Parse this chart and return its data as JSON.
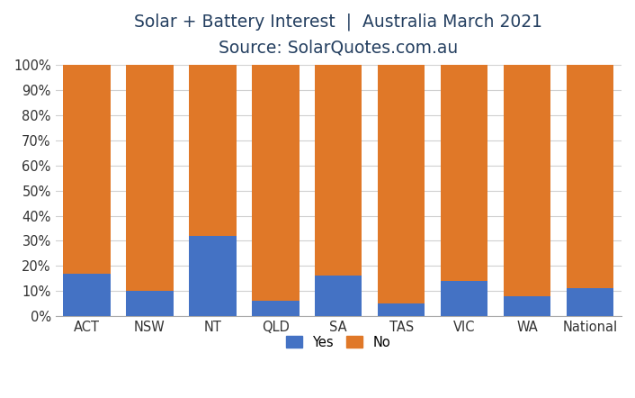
{
  "categories": [
    "ACT",
    "NSW",
    "NT",
    "QLD",
    "SA",
    "TAS",
    "VIC",
    "WA",
    "National"
  ],
  "yes_values": [
    17,
    10,
    32,
    6,
    16,
    5,
    14,
    8,
    11
  ],
  "no_values": [
    83,
    90,
    68,
    94,
    84,
    95,
    86,
    92,
    89
  ],
  "yes_color": "#4472C4",
  "no_color": "#E07828",
  "title_line1": "Solar + Battery Interest  |  Australia March 2021",
  "title_line2": "Source: SolarQuotes.com.au",
  "title_color": "#243F60",
  "subtitle_color": "#243F60",
  "ylim": [
    0,
    100
  ],
  "legend_labels": [
    "Yes",
    "No"
  ],
  "background_color": "#FFFFFF",
  "grid_color": "#D0D0D0",
  "bar_width": 0.75,
  "title_fontsize": 13.5,
  "subtitle_fontsize": 13,
  "tick_fontsize": 10.5,
  "legend_fontsize": 10.5
}
